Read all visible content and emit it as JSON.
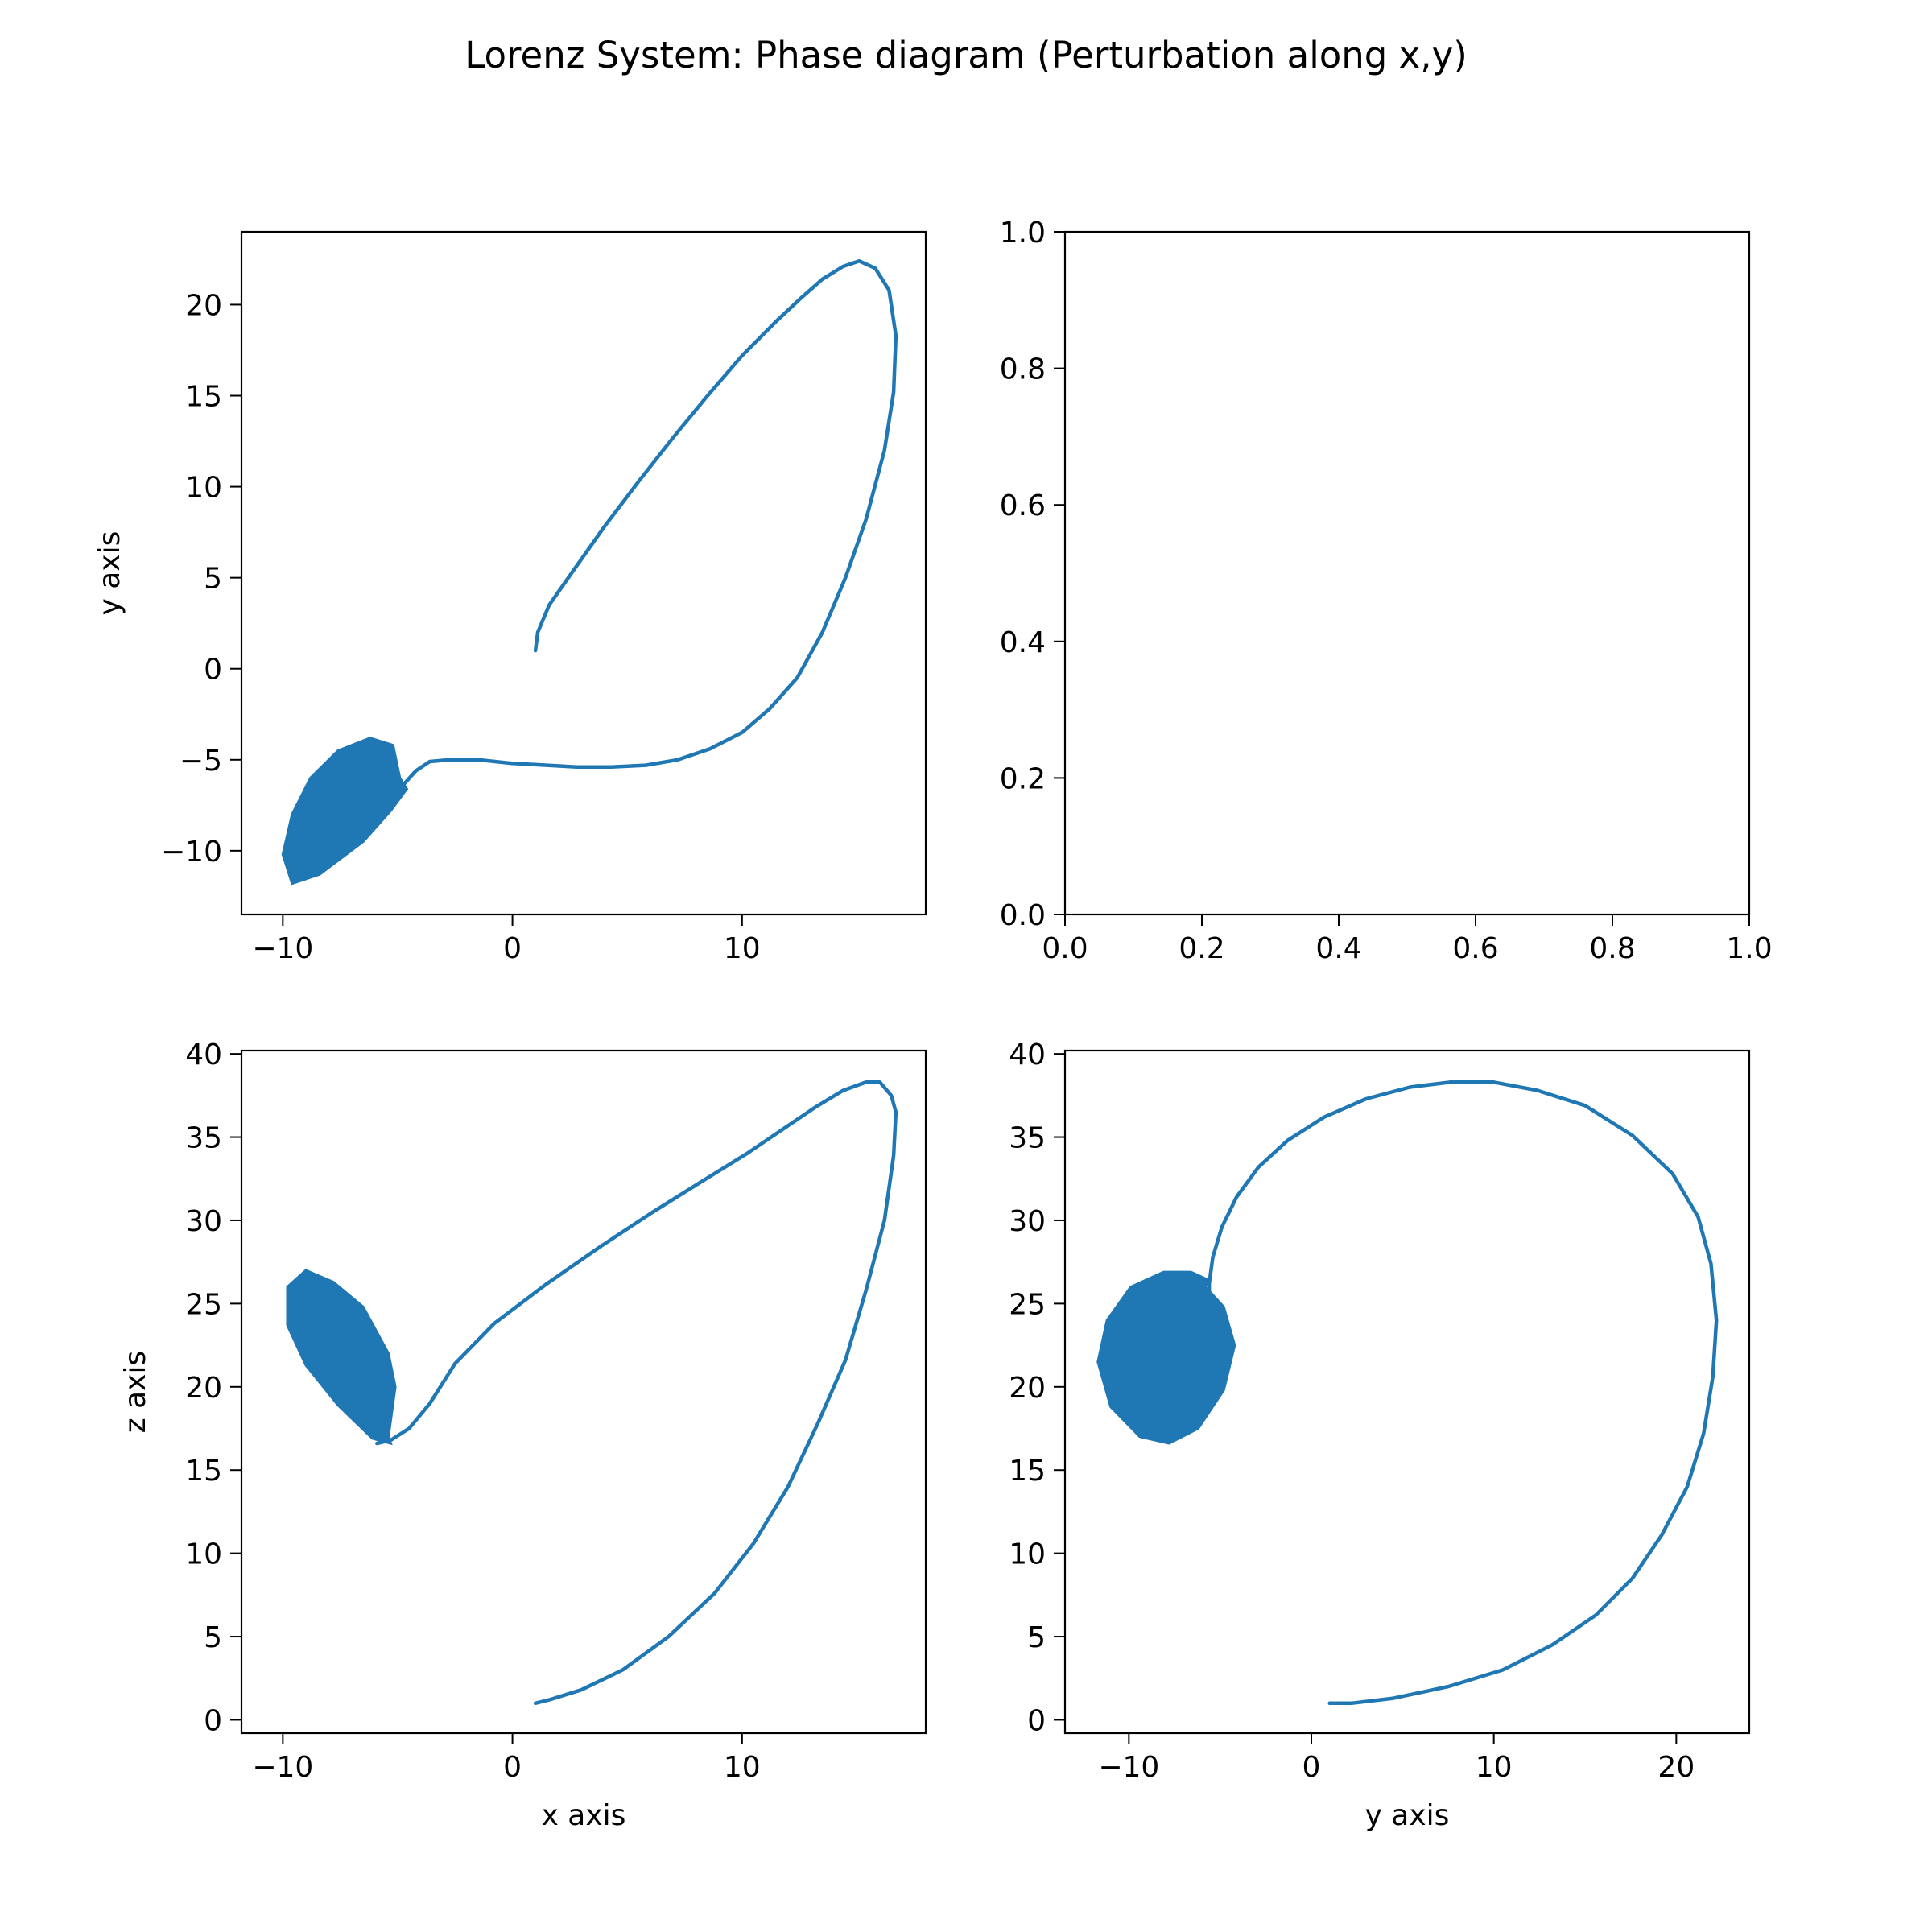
{
  "figure": {
    "title": "Lorenz System: Phase diagram (Perturbation along x,y)"
  },
  "chart_data": [
    {
      "id": "xy",
      "type": "line",
      "title": "",
      "xlabel": "",
      "ylabel": "y axis",
      "xlim": [
        -11.8,
        18.0
      ],
      "ylim": [
        -13.5,
        24.0
      ],
      "xticks": [
        -10,
        0,
        10
      ],
      "xtick_labels": [
        "−10",
        "0",
        "10"
      ],
      "yticks": [
        -10,
        -5,
        0,
        5,
        10,
        15,
        20
      ],
      "ytick_labels": [
        "−10",
        "−5",
        "0",
        "5",
        "10",
        "15",
        "20"
      ],
      "grid": false,
      "legend": "none",
      "color": "#1f77b4",
      "series": [
        {
          "x": [
            1.0,
            1.1,
            1.6,
            2.6,
            4.0,
            5.5,
            7.0,
            8.5,
            10.0,
            11.5,
            12.6,
            13.5,
            14.4,
            15.1,
            15.8,
            16.4,
            16.7,
            16.6,
            16.2,
            15.4,
            14.5,
            13.5,
            12.4,
            11.2,
            10.0,
            8.6,
            7.2,
            5.8,
            4.3,
            2.8,
            1.5,
            0.0,
            -1.5,
            -2.7,
            -3.6,
            -4.2,
            -4.7,
            -5.3
          ],
          "y": [
            1.0,
            2.0,
            3.5,
            5.3,
            7.8,
            10.3,
            12.7,
            15.0,
            17.2,
            19.1,
            20.4,
            21.4,
            22.1,
            22.4,
            22.0,
            20.8,
            18.3,
            15.2,
            12.0,
            8.2,
            5.0,
            2.0,
            -0.5,
            -2.2,
            -3.5,
            -4.4,
            -5.0,
            -5.3,
            -5.4,
            -5.4,
            -5.3,
            -5.2,
            -5.0,
            -5.0,
            -5.1,
            -5.6,
            -6.3,
            -7.2
          ]
        },
        {
          "type": "area",
          "x": [
            -4.9,
            -5.2,
            -6.2,
            -7.6,
            -8.8,
            -9.6,
            -10.0,
            -9.6,
            -8.4,
            -6.5,
            -5.3,
            -4.6
          ],
          "y": [
            -6.0,
            -4.2,
            -3.8,
            -4.5,
            -6.0,
            -8.0,
            -10.2,
            -11.8,
            -11.3,
            -9.5,
            -7.8,
            -6.6
          ]
        }
      ]
    },
    {
      "id": "empty",
      "type": "line",
      "title": "",
      "xlabel": "",
      "ylabel": "",
      "xlim": [
        0.0,
        1.0
      ],
      "ylim": [
        0.0,
        1.0
      ],
      "xticks": [
        0,
        0.2,
        0.4,
        0.6,
        0.8,
        1
      ],
      "xtick_labels": [
        "0.0",
        "0.2",
        "0.4",
        "0.6",
        "0.8",
        "1.0"
      ],
      "yticks": [
        0,
        0.2,
        0.4,
        0.6,
        0.8,
        1
      ],
      "ytick_labels": [
        "0.0",
        "0.2",
        "0.4",
        "0.6",
        "0.8",
        "1.0"
      ],
      "grid": false,
      "legend": "none",
      "series": []
    },
    {
      "id": "xz",
      "type": "line",
      "title": "",
      "xlabel": "x axis",
      "ylabel": "z axis",
      "xlim": [
        -11.8,
        18.0
      ],
      "ylim": [
        -0.8,
        40.2
      ],
      "xticks": [
        -10,
        0,
        10
      ],
      "xtick_labels": [
        "−10",
        "0",
        "10"
      ],
      "yticks": [
        0,
        5,
        10,
        15,
        20,
        25,
        30,
        35,
        40
      ],
      "ytick_labels": [
        "0",
        "5",
        "10",
        "15",
        "20",
        "25",
        "30",
        "35",
        "40"
      ],
      "grid": false,
      "legend": "none",
      "color": "#1f77b4",
      "series": [
        {
          "x": [
            1.0,
            1.6,
            3.0,
            4.8,
            6.8,
            8.8,
            10.5,
            12.0,
            13.3,
            14.5,
            15.4,
            16.2,
            16.6,
            16.7,
            16.5,
            16.0,
            15.4,
            14.4,
            13.2,
            11.8,
            10.2,
            8.2,
            6.0,
            3.8,
            1.5,
            -0.8,
            -2.5,
            -3.6,
            -4.5,
            -5.3,
            -5.9
          ],
          "y": [
            1.0,
            1.2,
            1.8,
            3.0,
            5.0,
            7.6,
            10.6,
            14.0,
            17.8,
            21.6,
            25.8,
            30.0,
            33.9,
            36.5,
            37.5,
            38.3,
            38.3,
            37.8,
            36.8,
            35.5,
            34.0,
            32.3,
            30.4,
            28.4,
            26.2,
            23.8,
            21.4,
            19.0,
            17.5,
            16.8,
            16.6
          ]
        },
        {
          "type": "area",
          "x": [
            -5.4,
            -5.1,
            -5.4,
            -6.5,
            -7.8,
            -9.0,
            -9.8,
            -9.8,
            -9.0,
            -7.6,
            -6.1,
            -5.3
          ],
          "y": [
            17.0,
            20.0,
            22.0,
            24.8,
            26.3,
            27.0,
            26.0,
            23.7,
            21.3,
            18.9,
            16.9,
            16.6
          ]
        }
      ]
    },
    {
      "id": "yz",
      "type": "line",
      "title": "",
      "xlabel": "y axis",
      "ylabel": "",
      "xlim": [
        -13.5,
        24.0
      ],
      "ylim": [
        -0.8,
        40.2
      ],
      "xticks": [
        -10,
        0,
        10,
        20
      ],
      "xtick_labels": [
        "−10",
        "0",
        "10",
        "20"
      ],
      "yticks": [
        0,
        5,
        10,
        15,
        20,
        25,
        30,
        35,
        40
      ],
      "ytick_labels": [
        "0",
        "5",
        "10",
        "15",
        "20",
        "25",
        "30",
        "35",
        "40"
      ],
      "grid": false,
      "legend": "none",
      "color": "#1f77b4",
      "series": [
        {
          "x": [
            1.0,
            2.2,
            4.5,
            7.5,
            10.5,
            13.2,
            15.6,
            17.6,
            19.2,
            20.6,
            21.5,
            22.0,
            22.2,
            21.9,
            21.2,
            19.8,
            17.6,
            15.0,
            12.4,
            10.0,
            7.6,
            5.4,
            3.0,
            0.7,
            -1.3,
            -2.9,
            -4.1,
            -4.9,
            -5.4,
            -5.6,
            -5.6
          ],
          "y": [
            1.0,
            1.0,
            1.3,
            2.0,
            3.0,
            4.5,
            6.3,
            8.5,
            11.1,
            14.0,
            17.2,
            20.6,
            24.0,
            27.4,
            30.2,
            32.8,
            35.1,
            36.9,
            37.8,
            38.3,
            38.3,
            38.0,
            37.3,
            36.2,
            34.8,
            33.2,
            31.4,
            29.6,
            27.8,
            26.2,
            25.0
          ]
        },
        {
          "type": "area",
          "x": [
            -5.8,
            -4.8,
            -4.2,
            -4.8,
            -6.2,
            -7.8,
            -9.4,
            -11.0,
            -11.7,
            -11.2,
            -9.9,
            -8.1,
            -6.6,
            -5.6
          ],
          "y": [
            26.0,
            24.8,
            22.5,
            19.8,
            17.5,
            16.6,
            17.0,
            18.8,
            21.5,
            24.0,
            26.0,
            26.9,
            26.9,
            26.4
          ]
        }
      ]
    }
  ]
}
